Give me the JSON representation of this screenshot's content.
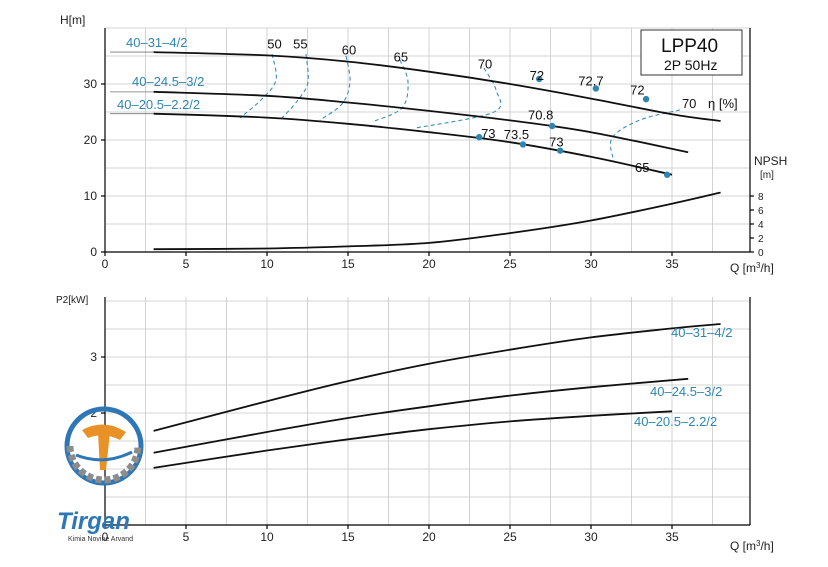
{
  "chart_data": [
    {
      "type": "line",
      "title": "LPP40",
      "subtitle": "2P  50Hz",
      "ylabel": "H[m]",
      "xlabel": "Q [m³/h]",
      "xlim": [
        0,
        40
      ],
      "ylim": [
        0,
        40
      ],
      "xticks": [
        "0",
        "5",
        "10",
        "15",
        "20",
        "25",
        "30",
        "35"
      ],
      "yticks": [
        "0",
        "10",
        "20",
        "30"
      ],
      "grid": true,
      "eta_label": "η [%]",
      "series": [
        {
          "name": "40–31–4/2",
          "x": [
            3,
            10,
            15,
            20,
            25,
            30,
            35,
            38
          ],
          "y": [
            35.7,
            35.1,
            34.0,
            32.2,
            30.0,
            27.4,
            24.6,
            23.4
          ]
        },
        {
          "name": "40–24.5–3/2",
          "x": [
            3,
            10,
            15,
            20,
            25,
            30,
            36
          ],
          "y": [
            28.6,
            27.9,
            26.7,
            25.2,
            23.5,
            21.4,
            17.8
          ]
        },
        {
          "name": "40–20.5–2.2/2",
          "x": [
            3,
            10,
            15,
            20,
            25,
            30,
            35
          ],
          "y": [
            24.7,
            24.0,
            22.9,
            21.4,
            19.6,
            17.0,
            13.8
          ]
        }
      ],
      "efficiency_labels": [
        {
          "text": "50",
          "x": 10.2,
          "y": 36.3
        },
        {
          "text": "55",
          "x": 11.8,
          "y": 36.3
        },
        {
          "text": "60",
          "x": 14.8,
          "y": 35.3
        },
        {
          "text": "65",
          "x": 18.0,
          "y": 34.0
        },
        {
          "text": "70",
          "x": 23.2,
          "y": 32.8
        },
        {
          "text": "72",
          "x": 26.4,
          "y": 30.7
        },
        {
          "text": "72.7",
          "x": 29.4,
          "y": 29.7
        },
        {
          "text": "72",
          "x": 32.6,
          "y": 28.1
        },
        {
          "text": "70",
          "x": 35.8,
          "y": 25.7
        },
        {
          "text": "70.8",
          "x": 26.3,
          "y": 23.7
        },
        {
          "text": "73",
          "x": 23.4,
          "y": 20.4
        },
        {
          "text": "73.5",
          "x": 24.8,
          "y": 20.2
        },
        {
          "text": "73",
          "x": 27.6,
          "y": 18.8
        },
        {
          "text": "65",
          "x": 32.9,
          "y": 14.3
        }
      ],
      "efficiency_points": [
        {
          "x": 26.8,
          "y": 30.9
        },
        {
          "x": 30.3,
          "y": 29.2
        },
        {
          "x": 33.4,
          "y": 27.3
        },
        {
          "x": 27.6,
          "y": 22.5
        },
        {
          "x": 23.1,
          "y": 20.5
        },
        {
          "x": 25.8,
          "y": 19.2
        },
        {
          "x": 28.1,
          "y": 18.1
        },
        {
          "x": 34.7,
          "y": 13.8
        }
      ],
      "npsh": {
        "label": "NPSH",
        "unit": "[m]",
        "ticks": [
          "0",
          "2",
          "4",
          "6",
          "8"
        ],
        "x": [
          3,
          10,
          15,
          20,
          25,
          30,
          35,
          38
        ],
        "y": [
          0.4,
          0.5,
          0.8,
          1.3,
          2.7,
          4.5,
          6.9,
          8.5
        ]
      }
    },
    {
      "type": "line",
      "ylabel": "P2[kW]",
      "xlabel": "Q [m³/h]",
      "xlim": [
        0,
        40
      ],
      "ylim": [
        0,
        4
      ],
      "xticks": [
        "0",
        "5",
        "10",
        "15",
        "20",
        "25",
        "30",
        "35"
      ],
      "yticks": [
        "2",
        "3"
      ],
      "grid": true,
      "series": [
        {
          "name": "40–31–4/2",
          "x": [
            3,
            10,
            15,
            20,
            25,
            30,
            35,
            38
          ],
          "y": [
            1.68,
            2.21,
            2.57,
            2.88,
            3.13,
            3.35,
            3.51,
            3.59
          ]
        },
        {
          "name": "40–24.5–3/2",
          "x": [
            3,
            10,
            15,
            20,
            25,
            30,
            36
          ],
          "y": [
            1.29,
            1.66,
            1.91,
            2.12,
            2.31,
            2.46,
            2.61
          ]
        },
        {
          "name": "40–20.5–2.2/2",
          "x": [
            3,
            10,
            15,
            20,
            25,
            30,
            35
          ],
          "y": [
            1.02,
            1.33,
            1.53,
            1.71,
            1.85,
            1.95,
            2.03
          ]
        }
      ]
    }
  ],
  "logo": {
    "brand": "Tirgan",
    "tagline": "Kimia Novine Arvand",
    "colors": {
      "blue": "#2d77b6",
      "orange": "#e79127",
      "gray": "#8c8c8c"
    }
  },
  "colors": {
    "accent": "#2e86b0",
    "curve": "#111111",
    "grid": "#c8c8c8"
  }
}
